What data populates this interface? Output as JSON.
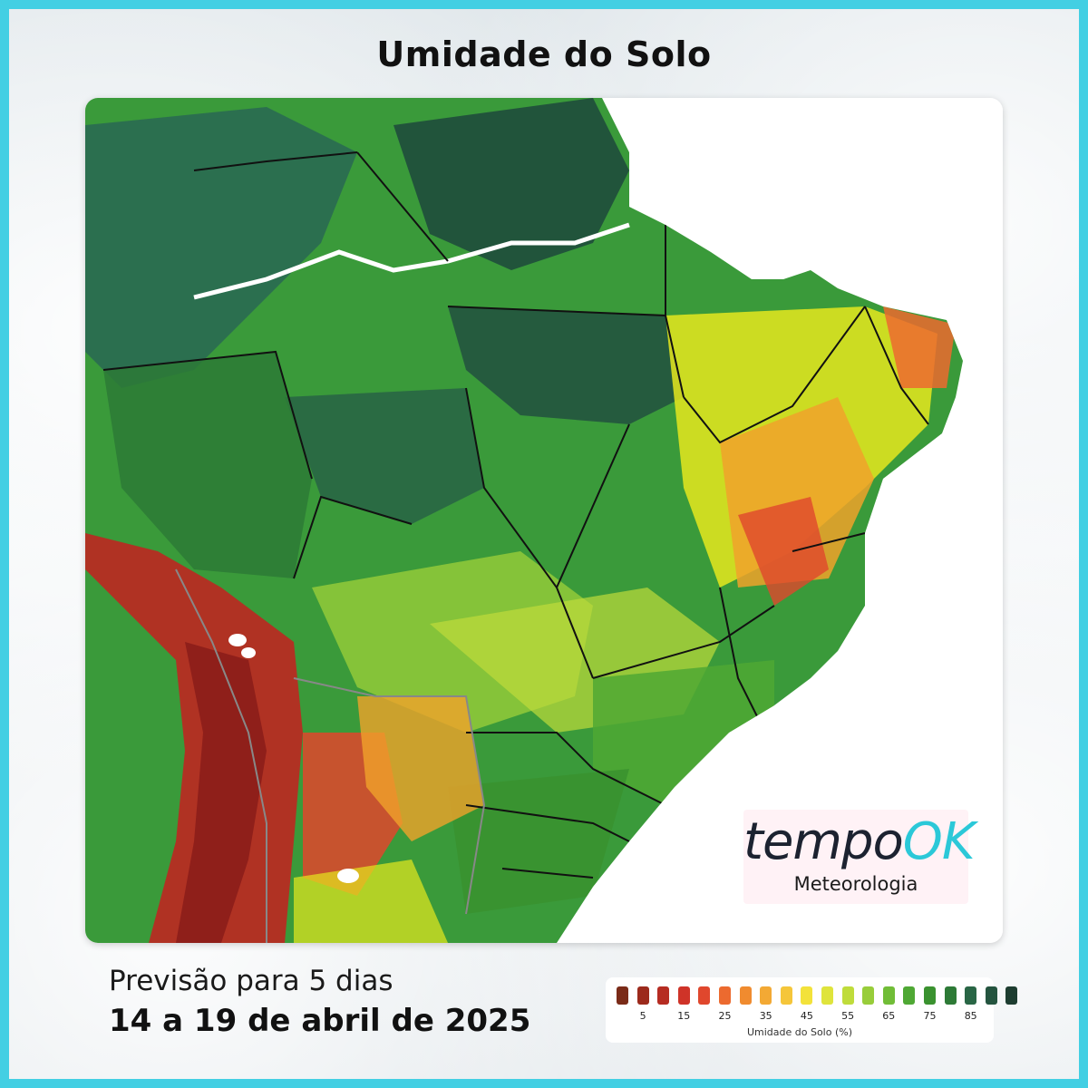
{
  "title": "Umidade do Solo",
  "map": {
    "region": "Brasil",
    "water_color": "#ffffff",
    "palette": {
      "very_wet": "#1f4d3c",
      "wet": "#2a6a52",
      "moist": "#2f8a3c",
      "green": "#3fa83a",
      "light_green": "#8cc63e",
      "yellow": "#e6e81e",
      "orange": "#f0a22a",
      "red": "#d9342a",
      "dark_red": "#8c1d1a"
    }
  },
  "logo": {
    "brand_main": "tempo",
    "brand_accent": "OK",
    "brand_sub": "Meteorologia"
  },
  "footer": {
    "forecast": "Previsão para 5 dias",
    "date_range": "14 a 19 de abril de 2025"
  },
  "legend": {
    "label": "Umidade do Solo (%)",
    "ticks": [
      "5",
      "15",
      "25",
      "35",
      "45",
      "55",
      "65",
      "75",
      "85"
    ],
    "colors": [
      "#7a2b18",
      "#9c2a1c",
      "#b62c22",
      "#cf3328",
      "#e0472d",
      "#ec6a2f",
      "#f08b2f",
      "#f3a934",
      "#f5c63a",
      "#f3e23a",
      "#dfe43c",
      "#bfdc3b",
      "#98cd3a",
      "#71bd37",
      "#4fa834",
      "#3a922f",
      "#2d7a36",
      "#296645",
      "#24543f",
      "#1d3d30"
    ]
  }
}
